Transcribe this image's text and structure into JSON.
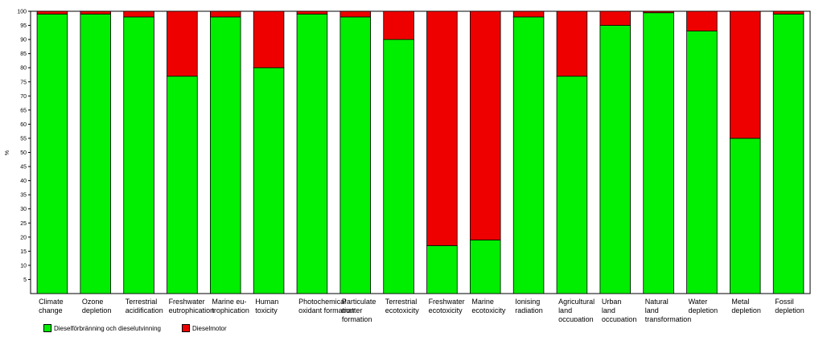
{
  "chart_data": {
    "type": "bar",
    "stacked": true,
    "ylabel": "%",
    "ylim": [
      0,
      100
    ],
    "yticks": [
      5,
      10,
      15,
      20,
      25,
      30,
      35,
      40,
      45,
      50,
      55,
      60,
      65,
      70,
      75,
      80,
      85,
      90,
      95,
      100
    ],
    "grid": false,
    "legend_position": "bottom-left",
    "categories": [
      [
        "Climate",
        "change"
      ],
      [
        "Ozone",
        "depletion"
      ],
      [
        "Terrestrial",
        "acidification"
      ],
      [
        "Freshwater",
        "eutrophication"
      ],
      [
        "Marine eu-",
        "trophication"
      ],
      [
        "Human",
        "toxicity"
      ],
      [
        "Photochemical",
        "oxidant formation"
      ],
      [
        "Particulate",
        "matter",
        "formation"
      ],
      [
        "Terrestrial",
        "ecotoxicity"
      ],
      [
        "Freshwater",
        "ecotoxicity"
      ],
      [
        "Marine",
        "ecotoxicity"
      ],
      [
        "Ionising",
        "radiation"
      ],
      [
        "Agricultural",
        "land",
        "occupation"
      ],
      [
        "Urban",
        "land",
        "occupation"
      ],
      [
        "Natural",
        "land",
        "transformation"
      ],
      [
        "Water",
        "depletion"
      ],
      [
        "Metal",
        "depletion"
      ],
      [
        "Fossil",
        "depletion"
      ]
    ],
    "series": [
      {
        "name": "Dieselförbränning och dieselutvinning",
        "color": "#00ee00",
        "values": [
          99,
          99,
          98,
          77,
          98,
          80,
          99,
          98,
          90,
          17,
          19,
          98,
          77,
          95,
          99.5,
          93,
          55,
          99
        ]
      },
      {
        "name": "Dieselmotor",
        "color": "#ee0000",
        "values": [
          1,
          1,
          2,
          23,
          2,
          20,
          1,
          2,
          10,
          83,
          81,
          2,
          23,
          5,
          0.5,
          7,
          45,
          1
        ]
      }
    ]
  }
}
